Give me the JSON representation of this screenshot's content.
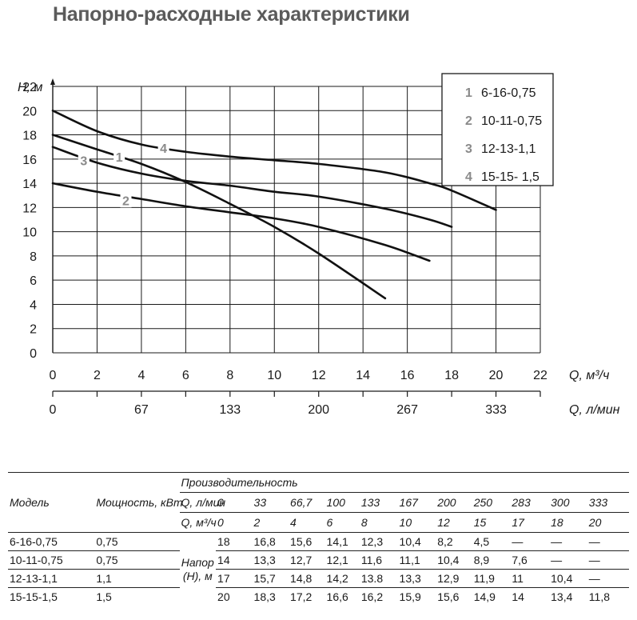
{
  "title": "Напорно-расходные характеристики",
  "chart_data": {
    "type": "line",
    "ylabel": "H, м",
    "xlabel": "Q, м³/ч",
    "x2label": "Q, л/мин",
    "xlim": [
      0,
      22
    ],
    "ylim": [
      0,
      22
    ],
    "x_ticks": [
      "0",
      "2",
      "4",
      "6",
      "8",
      "10",
      "12",
      "14",
      "16",
      "18",
      "20",
      "22"
    ],
    "y_ticks": [
      "0",
      "2",
      "4",
      "6",
      "8",
      "10",
      "12",
      "14",
      "16",
      "18",
      "20",
      "22"
    ],
    "x2_ticks": [
      {
        "x": 0,
        "label": "0"
      },
      {
        "x": 4,
        "label": "67"
      },
      {
        "x": 8,
        "label": "133"
      },
      {
        "x": 12,
        "label": "200"
      },
      {
        "x": 16,
        "label": "267"
      },
      {
        "x": 20,
        "label": "333"
      }
    ],
    "grid": true,
    "legend_position": "top-right",
    "series": [
      {
        "name": "6-16-0,75",
        "label": "1",
        "x": [
          0,
          2,
          4,
          6,
          8,
          10,
          12,
          15
        ],
        "y": [
          18,
          16.8,
          15.6,
          14.1,
          12.3,
          10.4,
          8.2,
          4.5
        ],
        "label_at": [
          3,
          16.2
        ]
      },
      {
        "name": "10-11-0,75",
        "label": "2",
        "x": [
          0,
          2,
          4,
          6,
          8,
          10,
          12,
          15,
          17
        ],
        "y": [
          14,
          13.3,
          12.7,
          12.1,
          11.6,
          11.1,
          10.4,
          8.9,
          7.6
        ],
        "label_at": [
          3.3,
          12.6
        ]
      },
      {
        "name": "12-13-1,1",
        "label": "3",
        "x": [
          0,
          2,
          4,
          6,
          8,
          10,
          12,
          15,
          17,
          18
        ],
        "y": [
          17,
          15.7,
          14.8,
          14.2,
          13.8,
          13.3,
          12.9,
          11.9,
          11,
          10.4
        ],
        "label_at": [
          1.4,
          15.9
        ]
      },
      {
        "name": "15-15- 1,5",
        "label": "4",
        "x": [
          0,
          2,
          4,
          6,
          8,
          10,
          12,
          15,
          17,
          18,
          20
        ],
        "y": [
          20,
          18.3,
          17.2,
          16.6,
          16.2,
          15.9,
          15.6,
          14.9,
          14,
          13.4,
          11.8
        ],
        "label_at": [
          5,
          16.9
        ]
      }
    ]
  },
  "table": {
    "col_model": "Модель",
    "col_power": "Мощность, кВт",
    "col_perf": "Производительность",
    "row_lpm_label": "Q, л/мин",
    "row_m3h_label": "Q, м³/ч",
    "lpm": [
      "0",
      "33",
      "66,7",
      "100",
      "133",
      "167",
      "200",
      "250",
      "283",
      "300",
      "333"
    ],
    "m3h": [
      "0",
      "2",
      "4",
      "6",
      "8",
      "10",
      "12",
      "15",
      "17",
      "18",
      "20"
    ],
    "head_label": "Напор (Н), м",
    "rows": [
      {
        "model": "6-16-0,75",
        "power": "0,75",
        "values": [
          "18",
          "16,8",
          "15,6",
          "14,1",
          "12,3",
          "10,4",
          "8,2",
          "4,5",
          "—",
          "—",
          "—"
        ]
      },
      {
        "model": "10-11-0,75",
        "power": "0,75",
        "values": [
          "14",
          "13,3",
          "12,7",
          "12,1",
          "11,6",
          "11,1",
          "10,4",
          "8,9",
          "7,6",
          "—",
          "—"
        ]
      },
      {
        "model": "12-13-1,1",
        "power": "1,1",
        "values": [
          "17",
          "15,7",
          "14,8",
          "14,2",
          "13.8",
          "13,3",
          "12,9",
          "11,9",
          "11",
          "10,4",
          "—"
        ]
      },
      {
        "model": "15-15-1,5",
        "power": "1,5",
        "values": [
          "20",
          "18,3",
          "17,2",
          "16,6",
          "16,2",
          "15,9",
          "15,6",
          "14,9",
          "14",
          "13,4",
          "11,8"
        ]
      }
    ]
  }
}
